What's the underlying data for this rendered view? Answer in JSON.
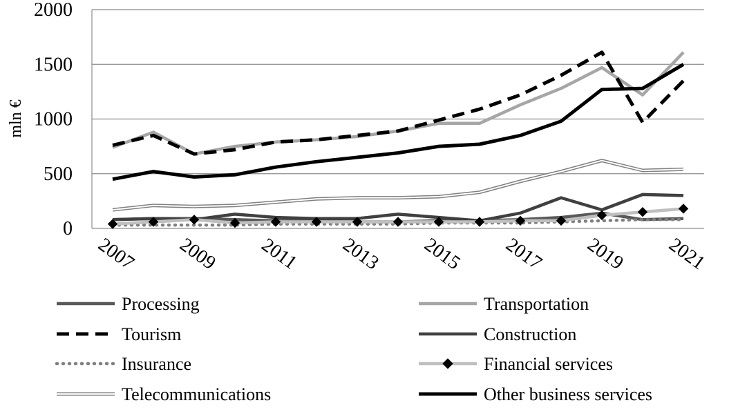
{
  "chart_data": {
    "type": "line",
    "ylabel": "mln €",
    "xlabel": "",
    "ylim": [
      0,
      2000
    ],
    "yticks": [
      0,
      500,
      1000,
      1500,
      2000
    ],
    "x": [
      2007,
      2008,
      2009,
      2010,
      2011,
      2012,
      2013,
      2014,
      2015,
      2016,
      2017,
      2018,
      2019,
      2020,
      2021
    ],
    "xtick_labels": [
      "2007",
      "2009",
      "2011",
      "2013",
      "2015",
      "2017",
      "2019",
      "2021"
    ],
    "grid": "horizontal",
    "legend_position": "bottom",
    "series": [
      {
        "name": "Processing",
        "color": "#595959",
        "style": "solid",
        "marker": "none",
        "values": [
          80,
          90,
          90,
          80,
          70,
          70,
          60,
          60,
          70,
          70,
          80,
          100,
          140,
          80,
          90
        ]
      },
      {
        "name": "Transportation",
        "color": "#a6a6a6",
        "style": "solid",
        "marker": "none",
        "values": [
          740,
          880,
          680,
          750,
          790,
          810,
          840,
          890,
          960,
          960,
          1130,
          1280,
          1470,
          1220,
          1610
        ]
      },
      {
        "name": "Tourism",
        "color": "#000000",
        "style": "dashed",
        "marker": "none",
        "values": [
          760,
          850,
          680,
          720,
          790,
          810,
          850,
          890,
          990,
          1090,
          1220,
          1400,
          1610,
          970,
          1350
        ]
      },
      {
        "name": "Construction",
        "color": "#404040",
        "style": "solid",
        "marker": "none",
        "values": [
          80,
          90,
          80,
          130,
          100,
          90,
          90,
          130,
          100,
          70,
          140,
          280,
          170,
          310,
          300
        ]
      },
      {
        "name": "Insurance",
        "color": "#808080",
        "style": "dotted",
        "marker": "none",
        "values": [
          30,
          30,
          30,
          30,
          40,
          40,
          40,
          40,
          50,
          50,
          50,
          60,
          70,
          80,
          80
        ]
      },
      {
        "name": "Financial services",
        "color": "#bfbfbf",
        "style": "solid",
        "marker": "diamond",
        "values": [
          40,
          60,
          80,
          50,
          60,
          60,
          60,
          60,
          60,
          60,
          70,
          70,
          120,
          150,
          180
        ]
      },
      {
        "name": "Telecommunications",
        "color": "#808080",
        "style": "double",
        "marker": "none",
        "values": [
          170,
          210,
          200,
          210,
          240,
          270,
          280,
          280,
          290,
          330,
          430,
          520,
          620,
          530,
          540
        ]
      },
      {
        "name": "Other business services",
        "color": "#000000",
        "style": "solid",
        "marker": "none",
        "values": [
          450,
          520,
          470,
          490,
          560,
          610,
          650,
          690,
          750,
          770,
          850,
          980,
          1270,
          1280,
          1500
        ]
      }
    ]
  }
}
